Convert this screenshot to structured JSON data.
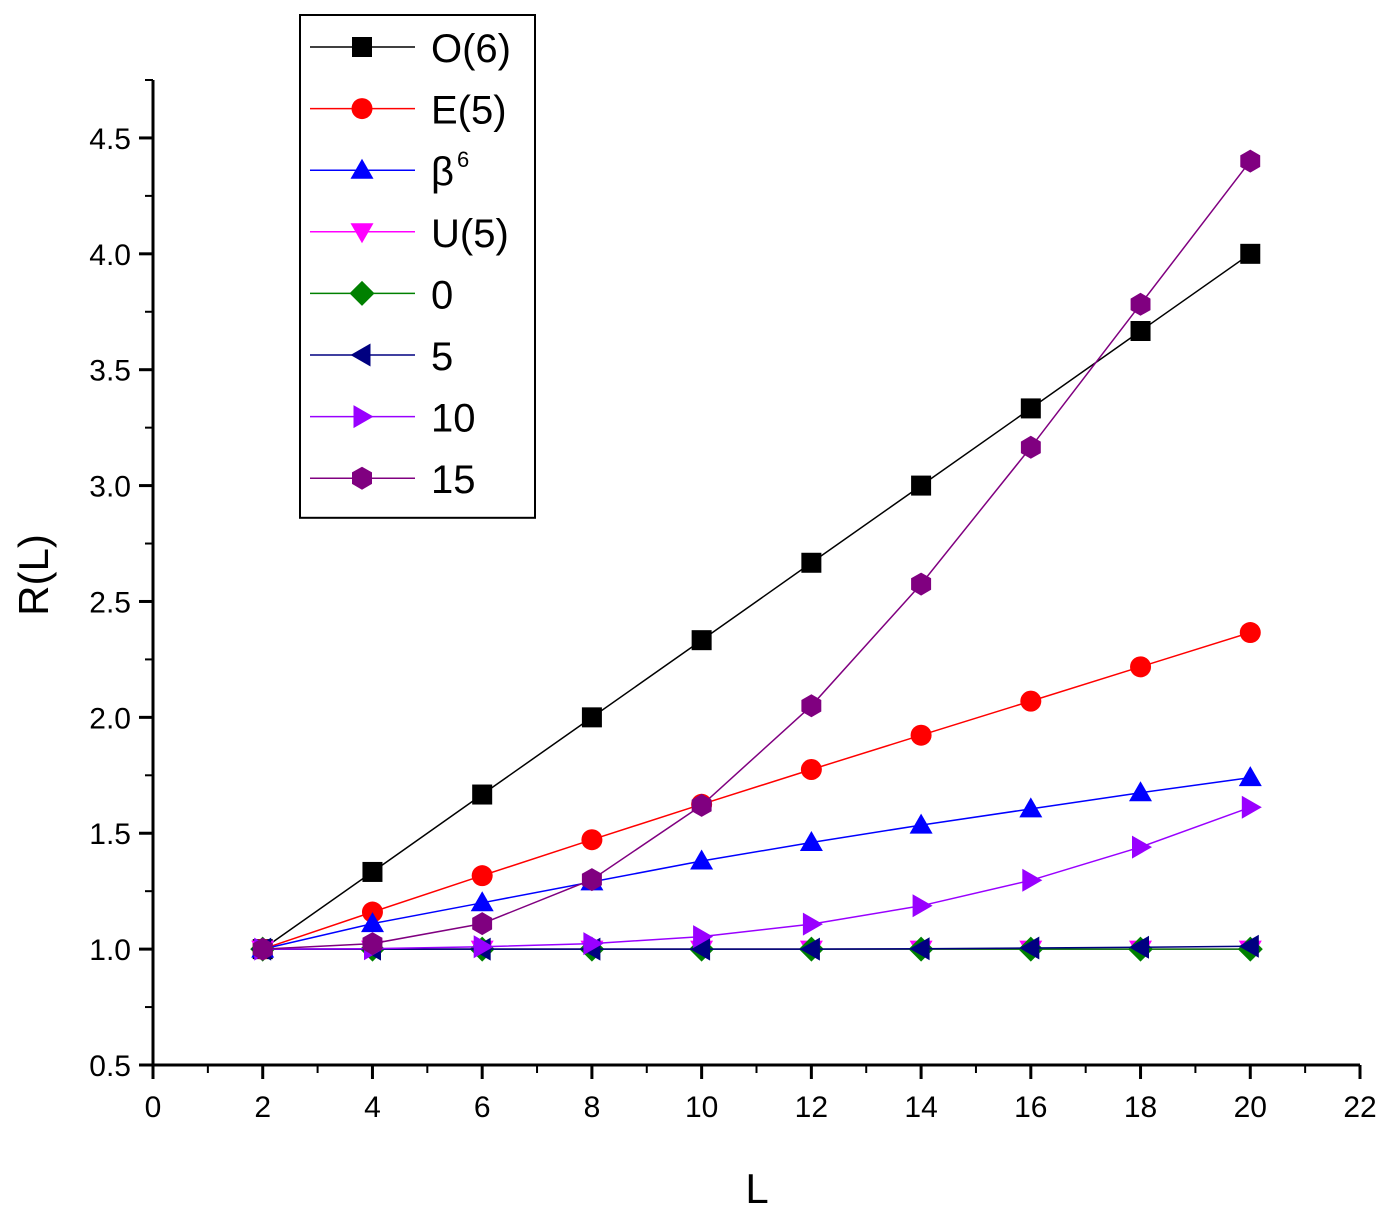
{
  "chart_data": {
    "type": "line",
    "title": "",
    "xlabel": "L",
    "ylabel": "R(L)",
    "xlim": [
      0,
      22
    ],
    "ylim": [
      0.5,
      4.75
    ],
    "x_ticks": [
      0,
      2,
      4,
      6,
      8,
      10,
      12,
      14,
      16,
      18,
      20,
      22
    ],
    "x_tick_labels": [
      "0",
      "2",
      "4",
      "6",
      "8",
      "10",
      "12",
      "14",
      "16",
      "18",
      "20",
      "22"
    ],
    "y_ticks": [
      0.5,
      1.0,
      1.5,
      2.0,
      2.5,
      3.0,
      3.5,
      4.0,
      4.5
    ],
    "y_tick_labels": [
      "0.5",
      "1.0",
      "1.5",
      "2.0",
      "2.5",
      "3.0",
      "3.5",
      "4.0",
      "4.5"
    ],
    "grid": false,
    "legend_position": "top-left",
    "x": [
      2,
      4,
      6,
      8,
      10,
      12,
      14,
      16,
      18,
      20
    ],
    "series": [
      {
        "name": "O(6)",
        "sup": "",
        "color": "#000000",
        "marker": "square",
        "values": [
          1.0,
          1.333,
          1.667,
          2.0,
          2.333,
          2.667,
          3.0,
          3.333,
          3.667,
          4.0
        ]
      },
      {
        "name": "E(5)",
        "sup": "",
        "color": "#ff0000",
        "marker": "circle",
        "values": [
          1.0,
          1.16,
          1.317,
          1.472,
          1.625,
          1.775,
          1.923,
          2.07,
          2.218,
          2.366
        ]
      },
      {
        "name": "β",
        "sup": "6",
        "color": "#0000ff",
        "marker": "triangle-up",
        "values": [
          1.0,
          1.11,
          1.2,
          1.29,
          1.38,
          1.46,
          1.535,
          1.605,
          1.675,
          1.74
        ]
      },
      {
        "name": "U(5)",
        "sup": "",
        "color": "#ff00ff",
        "marker": "triangle-down",
        "values": [
          1.0,
          1.0,
          1.0,
          1.0,
          1.0,
          1.0,
          1.0,
          1.0,
          1.0,
          1.0
        ]
      },
      {
        "name": "0",
        "sup": "",
        "color": "#008000",
        "marker": "diamond",
        "values": [
          1.0,
          1.0,
          1.0,
          1.0,
          1.0,
          1.0,
          1.0,
          1.0,
          1.0,
          1.0
        ]
      },
      {
        "name": "5",
        "sup": "",
        "color": "#000080",
        "marker": "triangle-left",
        "values": [
          1.0,
          1.0,
          1.0,
          1.0,
          1.0,
          1.0,
          1.002,
          1.005,
          1.008,
          1.012
        ]
      },
      {
        "name": "10",
        "sup": "",
        "color": "#9900ff",
        "marker": "triangle-right",
        "values": [
          1.0,
          1.002,
          1.01,
          1.024,
          1.054,
          1.108,
          1.187,
          1.297,
          1.44,
          1.612
        ]
      },
      {
        "name": "15",
        "sup": "",
        "color": "#800080",
        "marker": "hexagon",
        "values": [
          1.0,
          1.024,
          1.11,
          1.3,
          1.62,
          2.05,
          2.575,
          3.165,
          3.782,
          4.4
        ]
      }
    ]
  }
}
